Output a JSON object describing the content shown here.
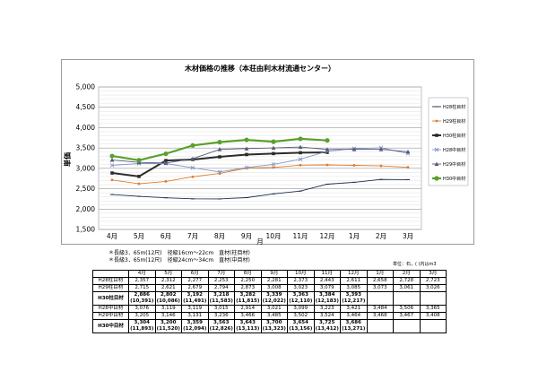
{
  "chart_data": {
    "type": "line",
    "title": "木材価格の推移（本荘由利木材流通センター）",
    "ylabel": "単価",
    "xlabel": "月",
    "categories": [
      "4月",
      "5月",
      "6月",
      "7月",
      "8月",
      "9月",
      "10月",
      "11月",
      "12月",
      "1月",
      "2月",
      "3月"
    ],
    "ylim": [
      1500,
      5000
    ],
    "yticks": [
      "1,500",
      "2,000",
      "2,500",
      "3,000",
      "3,500",
      "4,000",
      "4,500",
      "5,000"
    ],
    "grid": true,
    "legend_position": "right",
    "series": [
      {
        "name": "H28柱目材",
        "color": "#1f2d4d",
        "marker": "dash",
        "values": [
          2357,
          2312,
          2277,
          2253,
          2250,
          2281,
          2373,
          2443,
          2611,
          2658,
          2728,
          2723
        ]
      },
      {
        "name": "H29柱目材",
        "color": "#e07b2c",
        "marker": "dot",
        "values": [
          2715,
          2621,
          2679,
          2794,
          2873,
          3008,
          3023,
          3079,
          3085,
          3073,
          3061,
          3026
        ]
      },
      {
        "name": "H30柱目材",
        "color": "#2b2b2b",
        "marker": "bold",
        "values": [
          2886,
          2802,
          3192,
          3218,
          3282,
          3339,
          3363,
          3384,
          3393,
          null,
          null,
          null
        ]
      },
      {
        "name": "H28中目材",
        "color": "#7f97c8",
        "marker": "x",
        "values": [
          3076,
          3119,
          3119,
          3015,
          2914,
          3021,
          3099,
          3223,
          3421,
          3484,
          3506,
          3365
        ]
      },
      {
        "name": "H29中目材",
        "color": "#555a7a",
        "marker": "triangle",
        "values": [
          3205,
          3146,
          3131,
          3236,
          3466,
          3485,
          3502,
          3524,
          3464,
          3468,
          3467,
          3408
        ]
      },
      {
        "name": "H30中目材",
        "color": "#5aa02c",
        "marker": "circle",
        "values": [
          3304,
          3200,
          3359,
          3563,
          3643,
          3700,
          3654,
          3725,
          3686,
          null,
          null,
          null
        ]
      }
    ]
  },
  "notes": {
    "note1": "＊長級3．65m(12尺)　径級16cm～22cm　直材(柱目材)",
    "note2": "＊長級3．65m(12尺)　径級24cm～34cm　直材(中目材)",
    "unit": "単位：石，( )内はm3"
  },
  "table": {
    "headers": [
      "",
      "4月",
      "5月",
      "6月",
      "7月",
      "8月",
      "9月",
      "10月",
      "11月",
      "12月",
      "1月",
      "2月",
      "3月"
    ],
    "rows": [
      {
        "label": "H28柱目材",
        "bold": false,
        "cells": [
          "2,357",
          "2,312",
          "2,277",
          "2,253",
          "2,250",
          "2,281",
          "2,373",
          "2,443",
          "2,611",
          "2,658",
          "2,728",
          "2,723"
        ]
      },
      {
        "label": "H29柱目材",
        "bold": false,
        "cells": [
          "2,715",
          "2,621",
          "2,679",
          "2,794",
          "2,873",
          "3,008",
          "3,023",
          "3,079",
          "3,085",
          "3,073",
          "3,061",
          "3,026"
        ]
      },
      {
        "label": "H30柱目材",
        "bold": true,
        "cells": [
          "2,886",
          "2,802",
          "3,192",
          "3,218",
          "3,282",
          "3,339",
          "3,363",
          "3,384",
          "3,393",
          "",
          "",
          ""
        ],
        "sub": [
          "(10,391)",
          "(10,086)",
          "(11,491)",
          "(11,583)",
          "(11,815)",
          "(12,022)",
          "(12,110)",
          "(12,183)",
          "(12,217)",
          "",
          "",
          ""
        ]
      },
      {
        "label": "H28中目材",
        "bold": false,
        "cells": [
          "3,076",
          "3,119",
          "3,119",
          "3,015",
          "2,914",
          "3,021",
          "3,099",
          "3,223",
          "3,421",
          "3,484",
          "3,506",
          "3,365"
        ]
      },
      {
        "label": "H29中目材",
        "bold": false,
        "cells": [
          "3,205",
          "3,146",
          "3,131",
          "3,236",
          "3,466",
          "3,485",
          "3,502",
          "3,524",
          "3,464",
          "3,468",
          "3,467",
          "3,408"
        ]
      },
      {
        "label": "H30中目材",
        "bold": true,
        "cells": [
          "3,304",
          "3,200",
          "3,359",
          "3,563",
          "3,643",
          "3,700",
          "3,654",
          "3,725",
          "3,686",
          "",
          "",
          ""
        ],
        "sub": [
          "(11,893)",
          "(11,520)",
          "(12,094)",
          "(12,826)",
          "(13,113)",
          "(13,323)",
          "(13,156)",
          "(13,412)",
          "(13,271)",
          "",
          "",
          ""
        ]
      }
    ]
  }
}
